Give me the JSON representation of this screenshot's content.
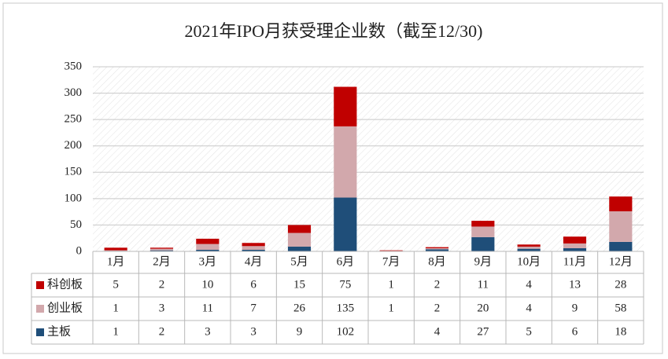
{
  "chart_data": {
    "type": "bar",
    "stacked": true,
    "title": "2021年IPO月获受理企业数（截至12/30)",
    "categories": [
      "1月",
      "2月",
      "3月",
      "4月",
      "5月",
      "6月",
      "7月",
      "8月",
      "9月",
      "10月",
      "11月",
      "12月"
    ],
    "series": [
      {
        "name": "科创板",
        "color": "#c00000",
        "values": [
          5,
          2,
          10,
          6,
          15,
          75,
          1,
          2,
          11,
          4,
          13,
          28
        ]
      },
      {
        "name": "创业板",
        "color": "#d2a8ac",
        "values": [
          1,
          3,
          11,
          7,
          26,
          135,
          1,
          2,
          20,
          4,
          9,
          58
        ]
      },
      {
        "name": "主板",
        "color": "#1f4e79",
        "values": [
          1,
          2,
          3,
          3,
          9,
          102,
          null,
          4,
          27,
          5,
          6,
          18
        ]
      }
    ],
    "ylim": [
      0,
      350
    ],
    "yticks": [
      0,
      50,
      100,
      150,
      200,
      250,
      300,
      350
    ],
    "grid": true
  }
}
